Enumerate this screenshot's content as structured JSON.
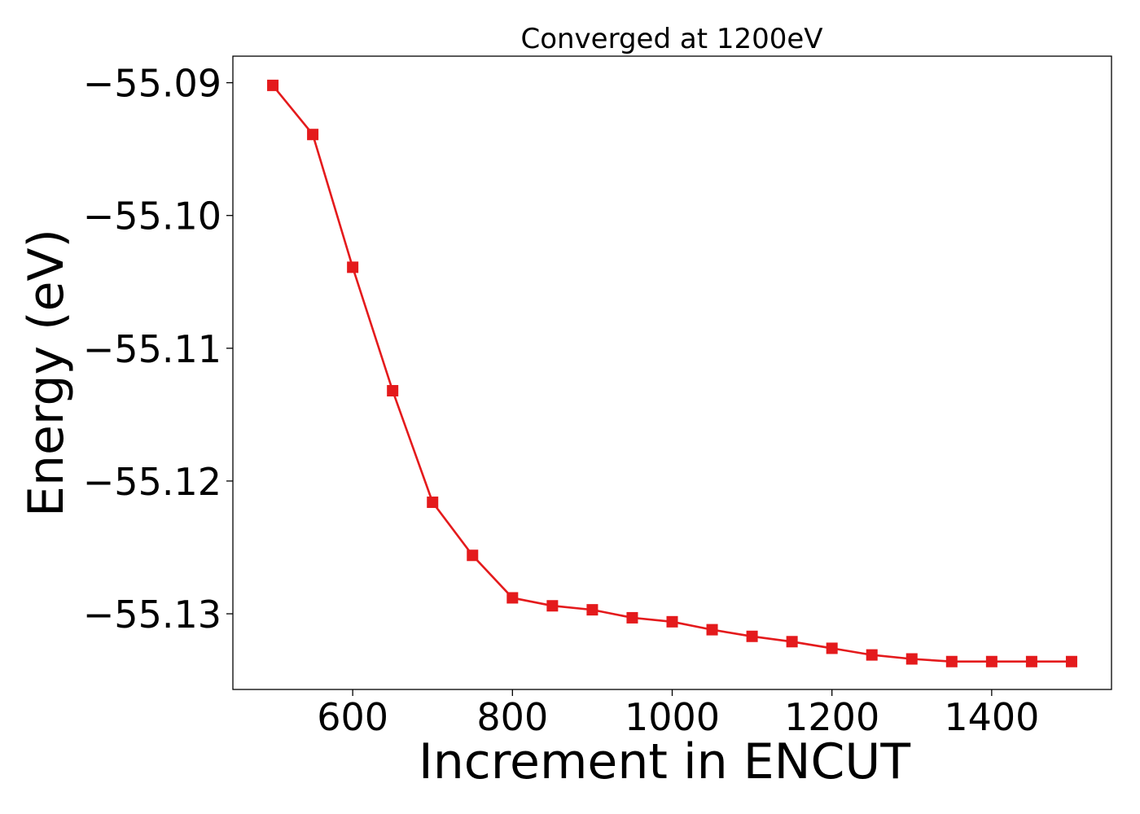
{
  "chart_data": {
    "type": "line",
    "title": "Converged at 1200eV",
    "xlabel": "Increment in ENCUT",
    "ylabel": "Energy (eV)",
    "xlim": [
      450,
      1550
    ],
    "ylim": [
      -55.1357,
      -55.088
    ],
    "xticks": [
      600,
      800,
      1000,
      1200,
      1400
    ],
    "xtick_labels": [
      "600",
      "800",
      "1000",
      "1200",
      "1400"
    ],
    "yticks": [
      -55.09,
      -55.1,
      -55.11,
      -55.12,
      -55.13
    ],
    "ytick_labels": [
      "−55.09",
      "−55.10",
      "−55.11",
      "−55.12",
      "−55.13"
    ],
    "grid": false,
    "legend": "none",
    "series": [
      {
        "color": "#e41a1c",
        "marker": "square",
        "x": [
          500,
          550,
          600,
          650,
          700,
          750,
          800,
          850,
          900,
          950,
          1000,
          1050,
          1100,
          1150,
          1200,
          1250,
          1300,
          1350,
          1400,
          1450,
          1500
        ],
        "y": [
          -55.0902,
          -55.0939,
          -55.1039,
          -55.1132,
          -55.1216,
          -55.1256,
          -55.1288,
          -55.1294,
          -55.1297,
          -55.1303,
          -55.1306,
          -55.1312,
          -55.1317,
          -55.1321,
          -55.1326,
          -55.1331,
          -55.1334,
          -55.1336,
          -55.1336,
          -55.1336,
          -55.1336
        ]
      }
    ]
  }
}
